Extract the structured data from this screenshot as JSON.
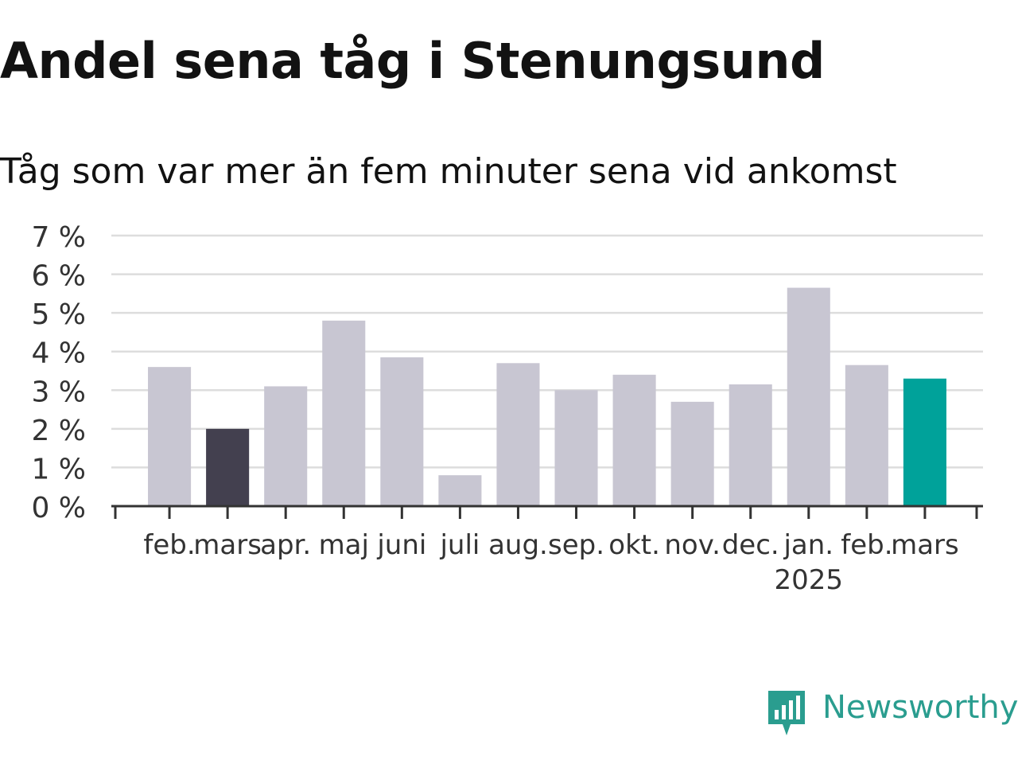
{
  "title": "Andel sena tåg i Stenungsund",
  "subtitle": "Tåg som var mer än fem minuter sena vid ankomst",
  "brand": {
    "name": "Newsworthy",
    "color": "#2a9d8f",
    "icon": "newsworthy-logo-icon"
  },
  "colors": {
    "bar": "#c8c6d2",
    "highlight_dark": "#43404f",
    "highlight_accent": "#00a29a",
    "grid": "#dddddd",
    "axis": "#333333"
  },
  "chart_data": {
    "type": "bar",
    "title": "Andel sena tåg i Stenungsund",
    "subtitle": "Tåg som var mer än fem minuter sena vid ankomst",
    "xlabel": "",
    "ylabel": "",
    "ylim": [
      0,
      7
    ],
    "yticks": [
      "0 %",
      "1 %",
      "2 %",
      "3 %",
      "4 %",
      "5 %",
      "6 %",
      "7 %"
    ],
    "grid": true,
    "categories": [
      "feb.",
      "mars",
      "apr.",
      "maj",
      "juni",
      "juli",
      "aug.",
      "sep.",
      "okt.",
      "nov.",
      "dec.",
      "jan.",
      "feb.",
      "mars"
    ],
    "year_label": "2025",
    "values": [
      3.6,
      2.0,
      3.1,
      4.8,
      3.85,
      0.8,
      3.7,
      3.0,
      3.4,
      2.7,
      3.15,
      5.65,
      3.65,
      3.3
    ],
    "highlight": [
      "none",
      "dark",
      "none",
      "none",
      "none",
      "none",
      "none",
      "none",
      "none",
      "none",
      "none",
      "none",
      "none",
      "accent"
    ]
  }
}
